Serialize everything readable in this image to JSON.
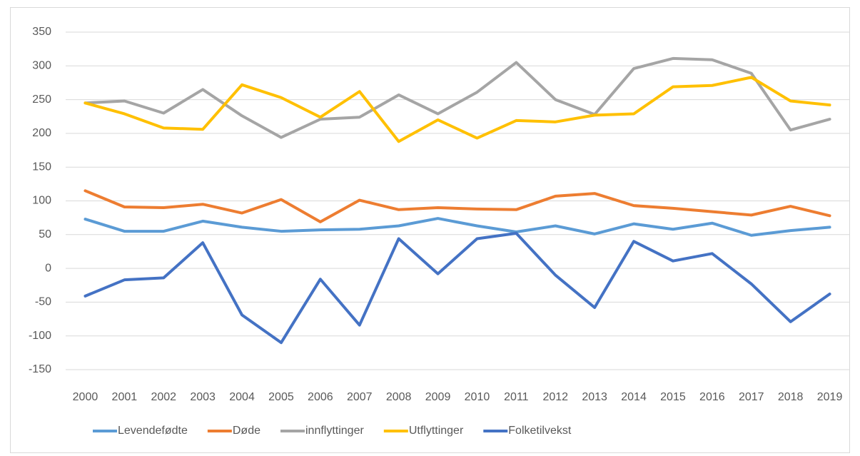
{
  "chart_data": {
    "type": "line",
    "categories": [
      "2000",
      "2001",
      "2002",
      "2003",
      "2004",
      "2005",
      "2006",
      "2007",
      "2008",
      "2009",
      "2010",
      "2011",
      "2012",
      "2013",
      "2014",
      "2015",
      "2016",
      "2017",
      "2018",
      "2019"
    ],
    "series": [
      {
        "name": "Levendefødte",
        "color": "#5b9bd5",
        "values": [
          73,
          55,
          55,
          70,
          61,
          55,
          57,
          58,
          63,
          74,
          63,
          54,
          63,
          51,
          66,
          58,
          67,
          49,
          56,
          61
        ]
      },
      {
        "name": "Døde",
        "color": "#ed7d31",
        "values": [
          115,
          91,
          90,
          95,
          82,
          102,
          69,
          101,
          87,
          90,
          88,
          87,
          107,
          111,
          93,
          89,
          84,
          79,
          92,
          78
        ]
      },
      {
        "name": "innflyttinger",
        "color": "#a5a5a5",
        "values": [
          245,
          248,
          230,
          265,
          226,
          194,
          221,
          224,
          257,
          229,
          261,
          305,
          250,
          228,
          296,
          311,
          309,
          289,
          205,
          221
        ]
      },
      {
        "name": "Utflyttinger",
        "color": "#ffc000",
        "values": [
          245,
          229,
          208,
          206,
          272,
          253,
          224,
          262,
          188,
          220,
          193,
          219,
          217,
          227,
          229,
          269,
          271,
          283,
          248,
          242
        ]
      },
      {
        "name": "Folketilvekst",
        "color": "#4472c4",
        "values": [
          -41,
          -17,
          -14,
          38,
          -69,
          -110,
          -16,
          -84,
          44,
          -8,
          44,
          52,
          -10,
          -58,
          40,
          11,
          22,
          -23,
          -79,
          -38
        ]
      }
    ],
    "ylim": [
      -150,
      350
    ],
    "yticks": [
      -150,
      -100,
      -50,
      0,
      50,
      100,
      150,
      200,
      250,
      300,
      350
    ],
    "grid": true,
    "legend": "bottom"
  }
}
